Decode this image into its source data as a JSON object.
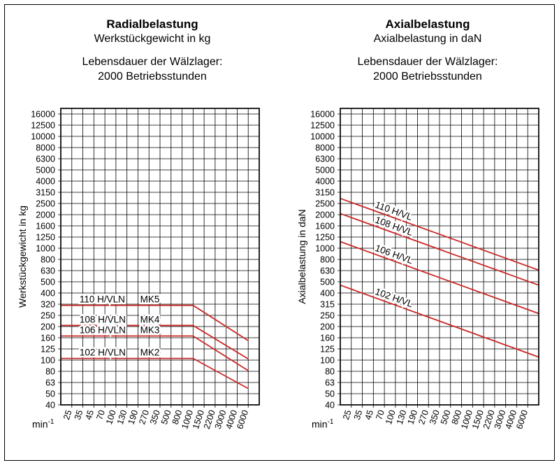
{
  "frame": {
    "background": "#ffffff",
    "border_color": "#000000"
  },
  "grid_color": "#000000",
  "charts": [
    {
      "title": "Radialbelastung",
      "subtitle": "Werkstückgewicht in kg",
      "note_line1": "Lebensdauer der Wälzlager:",
      "note_line2": "2000 Betriebsstunden",
      "y_axis_title": "Werkstückgewicht in kg",
      "x_unit": {
        "base": "min",
        "exponent": "-1"
      },
      "chart_data": {
        "type": "line",
        "title": "Radialbelastung – Werkstückgewicht in kg (Lebensdauer der Wälzlager: 2000 Betriebsstunden)",
        "xlabel": "min^-1 (Drehzahl)",
        "ylabel": "Werkstückgewicht in kg",
        "x_scale": "log, equal-spaced speed ticks",
        "y_scale": "log, Renard-series ticks (10 per decade)",
        "grid": "on",
        "x_ticks": [
          25,
          35,
          45,
          70,
          100,
          130,
          190,
          270,
          350,
          500,
          800,
          1000,
          1500,
          2200,
          3000,
          4000,
          6000
        ],
        "y_ticks": [
          40,
          50,
          63,
          80,
          100,
          125,
          160,
          200,
          250,
          320,
          400,
          500,
          630,
          800,
          1000,
          1250,
          1600,
          2000,
          2500,
          3150,
          4000,
          5000,
          6300,
          8000,
          10000,
          12500,
          16000
        ],
        "line_color": "#cc2929",
        "series": [
          {
            "label": "110 H/VLN",
            "mk_label": "MK5",
            "max_load_kg": 310,
            "constant_up_to_rpm": 1000,
            "end_rpm": 6000,
            "load_at_end_kg": 150
          },
          {
            "label": "108 H/VLN",
            "mk_label": "MK4",
            "max_load_kg": 205,
            "constant_up_to_rpm": 1000,
            "end_rpm": 6000,
            "load_at_end_kg": 103
          },
          {
            "label": "106 H/VLN",
            "mk_label": "MK3",
            "max_load_kg": 165,
            "constant_up_to_rpm": 1000,
            "end_rpm": 6000,
            "load_at_end_kg": 81
          },
          {
            "label": "102 H/VLN",
            "mk_label": "MK2",
            "max_load_kg": 104,
            "constant_up_to_rpm": 1000,
            "end_rpm": 6000,
            "load_at_end_kg": 56
          }
        ]
      }
    },
    {
      "title": "Axialbelastung",
      "subtitle": "Axialbelastung in daN",
      "note_line1": "Lebensdauer der Wälzlager:",
      "note_line2": "2000 Betriebsstunden",
      "y_axis_title": "Axialbelastung in daN",
      "x_unit": {
        "base": "min",
        "exponent": "-1"
      },
      "chart_data": {
        "type": "line",
        "title": "Axialbelastung in daN (Lebensdauer der Wälzlager: 2000 Betriebsstunden)",
        "xlabel": "min^-1 (Drehzahl)",
        "ylabel": "Axialbelastung in daN",
        "x_scale": "log, equal-spaced speed ticks",
        "y_scale": "log, Renard-series ticks (10 per decade)",
        "grid": "on",
        "x_ticks": [
          25,
          35,
          45,
          70,
          100,
          130,
          190,
          270,
          350,
          500,
          800,
          1000,
          1500,
          2200,
          3000,
          4000,
          6000
        ],
        "y_ticks": [
          40,
          50,
          63,
          80,
          100,
          125,
          160,
          200,
          250,
          315,
          400,
          500,
          630,
          800,
          1000,
          1250,
          1600,
          2000,
          2500,
          3150,
          4000,
          5000,
          6300,
          8000,
          10000,
          12500,
          16000
        ],
        "line_color": "#cc2929",
        "series": [
          {
            "label": "110 H/VL",
            "load_at_25_rpm_daN": 2800,
            "load_at_axis_end_daN": 640
          },
          {
            "label": "108 H/VL",
            "load_at_25_rpm_daN": 2050,
            "load_at_axis_end_daN": 470
          },
          {
            "label": "106 H/VL",
            "load_at_25_rpm_daN": 1150,
            "load_at_axis_end_daN": 262
          },
          {
            "label": "102 H/VL",
            "load_at_25_rpm_daN": 470,
            "load_at_axis_end_daN": 107
          }
        ]
      }
    }
  ]
}
